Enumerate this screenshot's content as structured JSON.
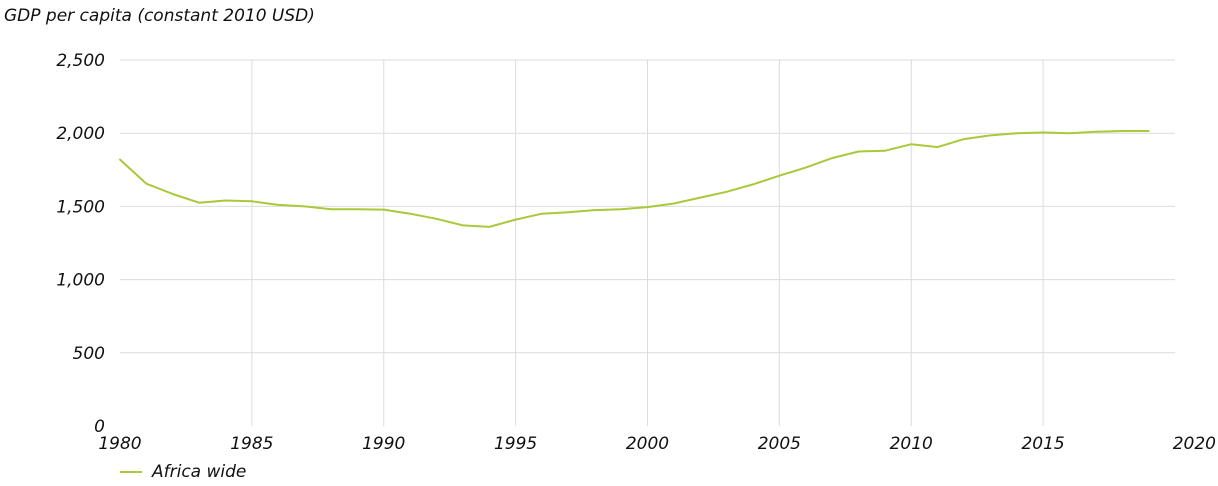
{
  "chart_data": {
    "type": "line",
    "title": "GDP per capita (constant 2010 USD)",
    "xlabel": "",
    "ylabel": "",
    "xlim": [
      1980,
      2020
    ],
    "ylim": [
      0,
      2500
    ],
    "x_ticks": [
      1980,
      1985,
      1990,
      1995,
      2000,
      2005,
      2010,
      2015,
      2020
    ],
    "x_tick_labels": [
      "1980",
      "1985",
      "1990",
      "1995",
      "2000",
      "2005",
      "2010",
      "2015",
      "2020"
    ],
    "y_ticks": [
      0,
      500,
      1000,
      1500,
      2000,
      2500
    ],
    "y_tick_labels": [
      "0",
      "500",
      "1,000",
      "1,500",
      "2,000",
      "2,500"
    ],
    "grid": "on",
    "legend_position": "bottom-left",
    "colors": {
      "line": "#a8c93a",
      "grid": "#dcdcdc"
    },
    "series": [
      {
        "name": "Africa wide",
        "x": [
          1980,
          1981,
          1982,
          1983,
          1984,
          1985,
          1986,
          1987,
          1988,
          1989,
          1990,
          1991,
          1992,
          1993,
          1994,
          1995,
          1996,
          1997,
          1998,
          1999,
          2000,
          2001,
          2002,
          2003,
          2004,
          2005,
          2006,
          2007,
          2008,
          2009,
          2010,
          2011,
          2012,
          2013,
          2014,
          2015,
          2016,
          2017,
          2018,
          2019
        ],
        "values": [
          1820,
          1655,
          1585,
          1525,
          1540,
          1535,
          1510,
          1500,
          1480,
          1480,
          1478,
          1450,
          1415,
          1370,
          1360,
          1410,
          1450,
          1460,
          1475,
          1480,
          1495,
          1520,
          1560,
          1600,
          1650,
          1710,
          1765,
          1830,
          1875,
          1880,
          1925,
          1905,
          1960,
          1985,
          2000,
          2005,
          2000,
          2010,
          2015,
          2015
        ]
      }
    ]
  }
}
